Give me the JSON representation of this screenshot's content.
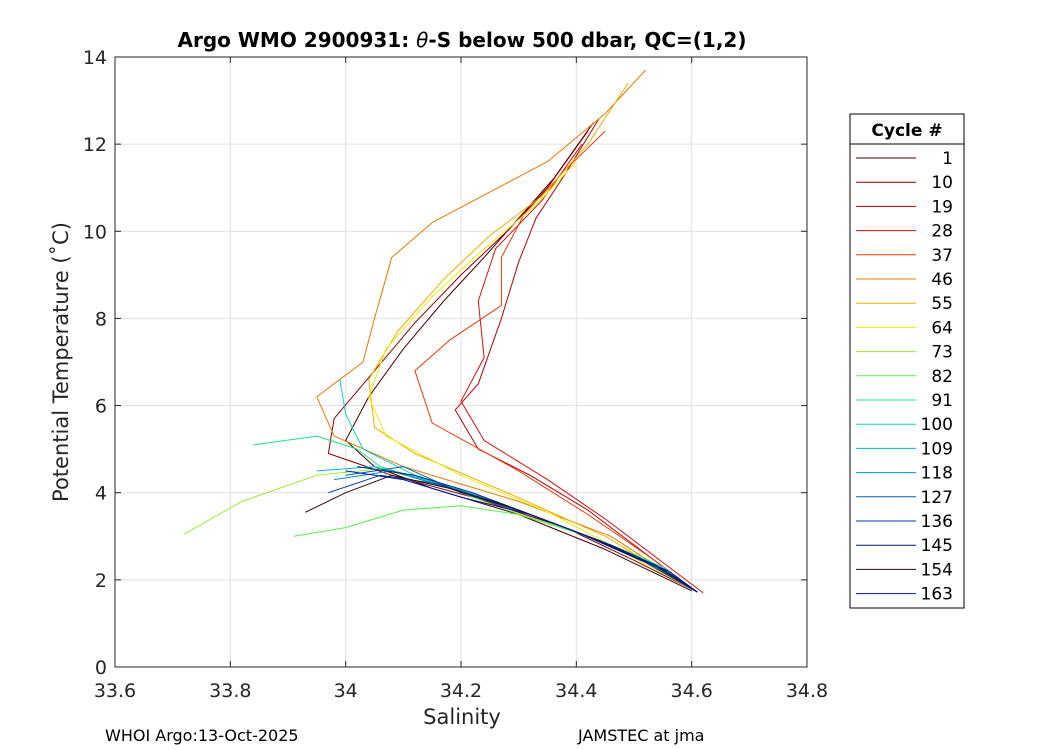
{
  "chart_data": {
    "type": "line",
    "title_parts": {
      "prefix": "Argo WMO 2900931: ",
      "theta": "θ",
      "suffix": "-S below 500 dbar,  QC=(1,2)"
    },
    "xlabel": "Salinity",
    "ylabel": "Potential Temperature (˚C)",
    "xlim": [
      33.6,
      34.8
    ],
    "ylim": [
      0,
      14
    ],
    "x_ticks": [
      33.6,
      33.8,
      34.0,
      34.2,
      34.4,
      34.6,
      34.8
    ],
    "x_tick_labels": [
      "33.6",
      "33.8",
      "34",
      "34.2",
      "34.4",
      "34.6",
      "34.8"
    ],
    "y_ticks": [
      0,
      2,
      4,
      6,
      8,
      10,
      12,
      14
    ],
    "y_tick_labels": [
      "0",
      "2",
      "4",
      "6",
      "8",
      "10",
      "12",
      "14"
    ],
    "grid": true,
    "legend_position": "outside-right",
    "legend_title": "Cycle #",
    "legend_entries": [
      {
        "label": "1",
        "color": "#4a0000"
      },
      {
        "label": "10",
        "color": "#8b0000"
      },
      {
        "label": "19",
        "color": "#b50000"
      },
      {
        "label": "28",
        "color": "#d21010"
      },
      {
        "label": "37",
        "color": "#e83a00"
      },
      {
        "label": "46",
        "color": "#e87800"
      },
      {
        "label": "55",
        "color": "#e8b000"
      },
      {
        "label": "64",
        "color": "#eeee00"
      },
      {
        "label": "73",
        "color": "#9ee83a"
      },
      {
        "label": "82",
        "color": "#5aee4e"
      },
      {
        "label": "91",
        "color": "#20e08a"
      },
      {
        "label": "100",
        "color": "#10d0c0"
      },
      {
        "label": "109",
        "color": "#00b8e0"
      },
      {
        "label": "118",
        "color": "#0090c8"
      },
      {
        "label": "127",
        "color": "#0060b8"
      },
      {
        "label": "136",
        "color": "#0038a0"
      },
      {
        "label": "145",
        "color": "#001a70"
      },
      {
        "label": "154",
        "color": "#2a0a10"
      },
      {
        "label": "163",
        "color": "#0018a8"
      }
    ],
    "series": [
      {
        "name": "1",
        "color": "#4a0000",
        "points": [
          [
            34.43,
            12.5
          ],
          [
            34.36,
            11.2
          ],
          [
            34.3,
            10.3
          ],
          [
            34.24,
            9.4
          ],
          [
            34.17,
            8.4
          ],
          [
            34.1,
            7.3
          ],
          [
            34.04,
            6.2
          ],
          [
            34.0,
            5.2
          ],
          [
            34.05,
            4.6
          ],
          [
            34.15,
            4.1
          ],
          [
            34.3,
            3.5
          ],
          [
            34.45,
            2.7
          ],
          [
            34.6,
            1.75
          ]
        ]
      },
      {
        "name": "10",
        "color": "#8b0000",
        "points": [
          [
            34.42,
            12.3
          ],
          [
            34.35,
            11.0
          ],
          [
            34.28,
            10.0
          ],
          [
            34.2,
            9.0
          ],
          [
            34.12,
            7.9
          ],
          [
            34.05,
            6.8
          ],
          [
            33.98,
            5.7
          ],
          [
            33.97,
            4.9
          ],
          [
            34.08,
            4.4
          ],
          [
            34.22,
            3.9
          ],
          [
            34.38,
            3.2
          ],
          [
            34.5,
            2.45
          ],
          [
            34.61,
            1.72
          ]
        ]
      },
      {
        "name": "19",
        "color": "#b50000",
        "points": [
          [
            34.44,
            12.6
          ],
          [
            34.38,
            11.3
          ],
          [
            34.33,
            10.3
          ],
          [
            34.3,
            9.3
          ],
          [
            34.27,
            8.0
          ],
          [
            34.23,
            6.5
          ],
          [
            34.19,
            5.9
          ],
          [
            34.23,
            5.0
          ],
          [
            34.32,
            4.4
          ],
          [
            34.42,
            3.6
          ],
          [
            34.52,
            2.6
          ],
          [
            34.61,
            1.72
          ]
        ]
      },
      {
        "name": "28",
        "color": "#d21010",
        "points": [
          [
            34.41,
            12.0
          ],
          [
            34.34,
            10.7
          ],
          [
            34.26,
            9.6
          ],
          [
            34.23,
            8.4
          ],
          [
            34.24,
            7.1
          ],
          [
            34.2,
            6.1
          ],
          [
            34.24,
            5.2
          ],
          [
            34.35,
            4.3
          ],
          [
            34.45,
            3.4
          ],
          [
            34.54,
            2.5
          ],
          [
            34.62,
            1.7
          ]
        ]
      },
      {
        "name": "37",
        "color": "#e83a00",
        "points": [
          [
            34.45,
            12.3
          ],
          [
            34.38,
            11.4
          ],
          [
            34.31,
            10.4
          ],
          [
            34.27,
            9.4
          ],
          [
            34.27,
            8.3
          ],
          [
            34.18,
            7.5
          ],
          [
            34.12,
            6.8
          ],
          [
            34.15,
            5.6
          ],
          [
            34.3,
            4.5
          ],
          [
            34.42,
            3.5
          ],
          [
            34.53,
            2.5
          ],
          [
            34.61,
            1.72
          ]
        ]
      },
      {
        "name": "46",
        "color": "#e87800",
        "points": [
          [
            34.52,
            13.7
          ],
          [
            34.45,
            12.7
          ],
          [
            34.35,
            11.6
          ],
          [
            34.25,
            10.9
          ],
          [
            34.15,
            10.2
          ],
          [
            34.08,
            9.4
          ],
          [
            34.05,
            8.0
          ],
          [
            34.03,
            7.0
          ],
          [
            33.95,
            6.2
          ],
          [
            33.98,
            5.3
          ],
          [
            34.1,
            4.6
          ],
          [
            34.3,
            3.8
          ],
          [
            34.46,
            3.0
          ],
          [
            34.61,
            1.72
          ]
        ]
      },
      {
        "name": "55",
        "color": "#e8b000",
        "points": [
          [
            34.49,
            13.4
          ],
          [
            34.42,
            12.0
          ],
          [
            34.34,
            10.8
          ],
          [
            34.25,
            9.9
          ],
          [
            34.17,
            8.9
          ],
          [
            34.09,
            7.7
          ],
          [
            34.04,
            6.6
          ],
          [
            34.05,
            5.5
          ],
          [
            34.12,
            4.9
          ],
          [
            34.28,
            4.0
          ],
          [
            34.45,
            3.0
          ],
          [
            34.61,
            1.72
          ]
        ]
      },
      {
        "name": "64",
        "color": "#eeee00",
        "points": [
          [
            34.4,
            11.6
          ],
          [
            34.33,
            10.6
          ],
          [
            34.24,
            9.6
          ],
          [
            34.15,
            8.5
          ],
          [
            34.07,
            7.3
          ],
          [
            34.04,
            6.2
          ],
          [
            34.07,
            5.3
          ],
          [
            34.2,
            4.4
          ],
          [
            34.36,
            3.5
          ],
          [
            34.5,
            2.5
          ],
          [
            34.61,
            1.72
          ]
        ]
      },
      {
        "name": "73",
        "color": "#9ee83a",
        "points": [
          [
            33.72,
            3.05
          ],
          [
            33.82,
            3.8
          ],
          [
            33.95,
            4.4
          ],
          [
            34.06,
            4.55
          ],
          [
            34.16,
            4.2
          ],
          [
            34.28,
            3.6
          ],
          [
            34.4,
            3.1
          ],
          [
            34.52,
            2.5
          ],
          [
            34.61,
            1.72
          ]
        ]
      },
      {
        "name": "82",
        "color": "#5aee4e",
        "points": [
          [
            33.91,
            3.0
          ],
          [
            34.0,
            3.2
          ],
          [
            34.1,
            3.6
          ],
          [
            34.2,
            3.7
          ],
          [
            34.3,
            3.5
          ],
          [
            34.42,
            3.0
          ],
          [
            34.53,
            2.4
          ],
          [
            34.61,
            1.72
          ]
        ]
      },
      {
        "name": "91",
        "color": "#20e08a",
        "points": [
          [
            33.84,
            5.1
          ],
          [
            33.95,
            5.3
          ],
          [
            34.02,
            5.0
          ],
          [
            34.06,
            4.6
          ],
          [
            34.16,
            4.2
          ],
          [
            34.3,
            3.6
          ],
          [
            34.44,
            2.9
          ],
          [
            34.55,
            2.3
          ],
          [
            34.61,
            1.72
          ]
        ]
      },
      {
        "name": "100",
        "color": "#10d0c0",
        "points": [
          [
            33.99,
            6.6
          ],
          [
            34.0,
            5.8
          ],
          [
            34.03,
            5.0
          ],
          [
            34.12,
            4.4
          ],
          [
            34.26,
            3.8
          ],
          [
            34.4,
            3.1
          ],
          [
            34.53,
            2.4
          ],
          [
            34.61,
            1.72
          ]
        ]
      },
      {
        "name": "109",
        "color": "#00b8e0",
        "points": [
          [
            33.95,
            4.5
          ],
          [
            34.05,
            4.6
          ],
          [
            34.14,
            4.3
          ],
          [
            34.26,
            3.8
          ],
          [
            34.4,
            3.1
          ],
          [
            34.52,
            2.4
          ],
          [
            34.61,
            1.72
          ]
        ]
      },
      {
        "name": "118",
        "color": "#0090c8",
        "points": [
          [
            33.98,
            4.3
          ],
          [
            34.08,
            4.5
          ],
          [
            34.18,
            4.1
          ],
          [
            34.3,
            3.6
          ],
          [
            34.42,
            3.0
          ],
          [
            34.53,
            2.35
          ],
          [
            34.61,
            1.72
          ]
        ]
      },
      {
        "name": "127",
        "color": "#0060b8",
        "points": [
          [
            34.0,
            4.4
          ],
          [
            34.1,
            4.6
          ],
          [
            34.2,
            4.0
          ],
          [
            34.32,
            3.5
          ],
          [
            34.44,
            2.9
          ],
          [
            34.55,
            2.25
          ],
          [
            34.61,
            1.72
          ]
        ]
      },
      {
        "name": "136",
        "color": "#0038a0",
        "points": [
          [
            33.97,
            4.0
          ],
          [
            34.06,
            4.4
          ],
          [
            34.16,
            4.2
          ],
          [
            34.28,
            3.7
          ],
          [
            34.4,
            3.1
          ],
          [
            34.52,
            2.4
          ],
          [
            34.61,
            1.72
          ]
        ]
      },
      {
        "name": "145",
        "color": "#001a70",
        "points": [
          [
            34.02,
            4.6
          ],
          [
            34.12,
            4.4
          ],
          [
            34.22,
            4.0
          ],
          [
            34.34,
            3.4
          ],
          [
            34.46,
            2.8
          ],
          [
            34.56,
            2.2
          ],
          [
            34.61,
            1.72
          ]
        ]
      },
      {
        "name": "154",
        "color": "#2a0a10",
        "points": [
          [
            33.93,
            3.55
          ],
          [
            34.0,
            4.0
          ],
          [
            34.08,
            4.4
          ],
          [
            34.18,
            4.1
          ],
          [
            34.3,
            3.6
          ],
          [
            34.42,
            3.0
          ],
          [
            34.54,
            2.3
          ],
          [
            34.61,
            1.72
          ]
        ]
      },
      {
        "name": "163",
        "color": "#0018a8",
        "points": [
          [
            34.0,
            4.5
          ],
          [
            34.1,
            4.3
          ],
          [
            34.2,
            3.9
          ],
          [
            34.32,
            3.5
          ],
          [
            34.44,
            2.9
          ],
          [
            34.55,
            2.25
          ],
          [
            34.61,
            1.72
          ]
        ]
      }
    ]
  },
  "footer": {
    "left": "WHOI Argo:13-Oct-2025",
    "right": "JAMSTEC at jma"
  }
}
